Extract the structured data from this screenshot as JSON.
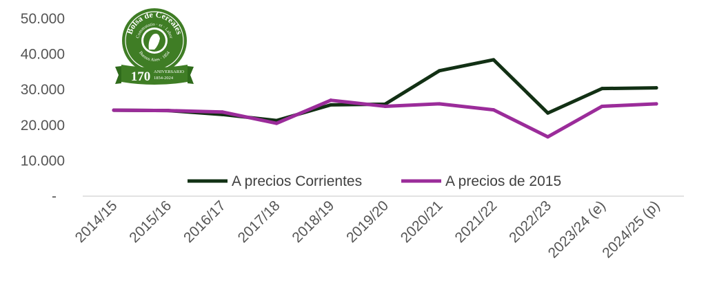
{
  "chart_data": {
    "type": "line",
    "categories": [
      "2014/15",
      "2015/16",
      "2016/17",
      "2017/18",
      "2018/19",
      "2019/20",
      "2020/21",
      "2021/22",
      "2022/23",
      "2023/24 (e)",
      "2024/25 (p)"
    ],
    "series": [
      {
        "name": "A precios Corrientes",
        "color": "#123014",
        "values": [
          24200,
          24100,
          23000,
          21300,
          25700,
          25900,
          35300,
          38400,
          23400,
          30300,
          30500
        ]
      },
      {
        "name": "A precios de 2015",
        "color": "#9b2c9a",
        "values": [
          24200,
          24100,
          23700,
          20500,
          27000,
          25300,
          26000,
          24300,
          16700,
          25300,
          26000
        ]
      }
    ],
    "y_ticks": [
      "-",
      "10.000",
      "20.000",
      "30.000",
      "40.000",
      "50.000"
    ],
    "ylim": [
      0,
      50000
    ],
    "grid": false,
    "legend": "inside-bottom-center"
  },
  "logo": {
    "name": "Bolsa de Cereales",
    "motto": "Commutatio · et · Labor",
    "city": "Buenos Aires · 1854",
    "number": "170",
    "anniversary_label": "ANIVERSARIO",
    "years": "1854-2024",
    "color": "#3f7d25"
  }
}
